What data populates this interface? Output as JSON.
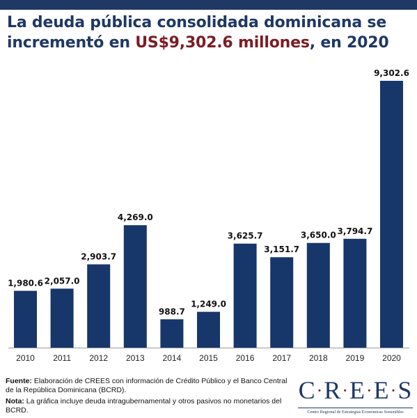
{
  "header": {
    "title_part1": "La deuda pública consolidada dominicana se incrementó en ",
    "title_highlight": "US$9,302.6 millones",
    "title_part2": ", en 2020"
  },
  "colors": {
    "bar": "#17366a",
    "title": "#1f3864",
    "highlight": "#7b1c24"
  },
  "chart_data": {
    "type": "bar",
    "title": "La deuda pública consolidada dominicana se incrementó en US$9,302.6 millones, en 2020",
    "xlabel": "",
    "ylabel": "",
    "categories": [
      "2010",
      "2011",
      "2012",
      "2013",
      "2014",
      "2015",
      "2016",
      "2017",
      "2018",
      "2019",
      "2020"
    ],
    "values": [
      1980.6,
      2057.0,
      2903.7,
      4269.0,
      988.7,
      1249.0,
      3625.7,
      3151.7,
      3650.0,
      3794.7,
      9302.6
    ],
    "value_labels": [
      "1,980.6",
      "2,057.0",
      "2,903.7",
      "4,269.0",
      "988.7",
      "1,249.0",
      "3,625.7",
      "3,151.7",
      "3,650.0",
      "3,794.7",
      "9,302.6"
    ],
    "ylim": [
      0,
      9302.6
    ],
    "grid": false,
    "legend": "none"
  },
  "footer": {
    "source_label": "Fuente:",
    "source_text": " Elaboración de CREES con información de Crédito Público y el Banco Central de la República Dominicana (BCRD).",
    "note_label": "Nota:",
    "note_text": " La gráfica incluye deuda intragubernamental y otros pasivos no monetarios del BCRD."
  },
  "logo": {
    "letters": [
      "C",
      "R",
      "E",
      "E",
      "S"
    ],
    "subtitle": "Centro Regional de Estrategias Económicas Sostenibles"
  }
}
